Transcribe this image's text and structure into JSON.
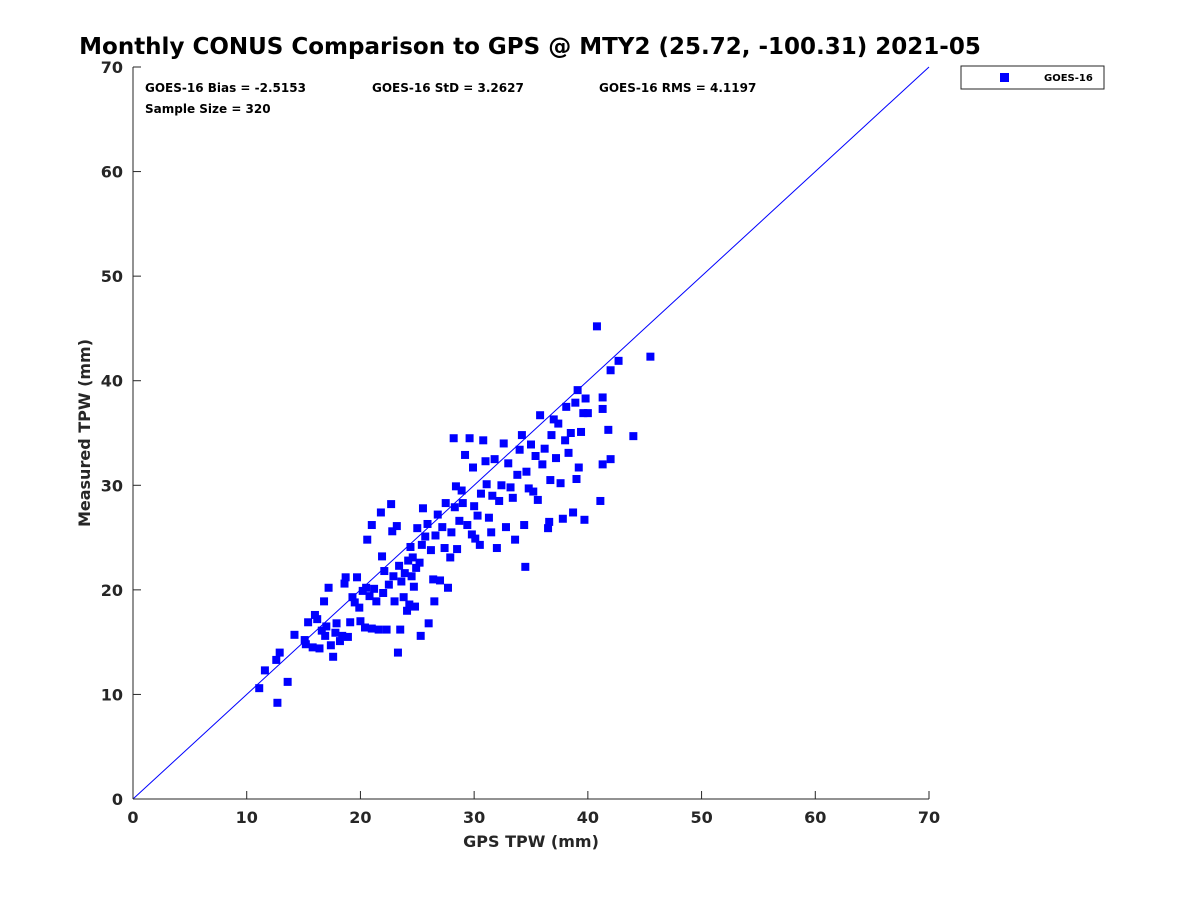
{
  "chart_data": {
    "type": "scatter",
    "title": "Monthly CONUS Comparison to GPS @ MTY2 (25.72, -100.31) 2021-05",
    "xlabel": "GPS TPW (mm)",
    "ylabel": "Measured TPW (mm)",
    "xlim": [
      0,
      70
    ],
    "ylim": [
      0,
      70
    ],
    "xticks": [
      "0",
      "10",
      "20",
      "30",
      "40",
      "50",
      "60",
      "70"
    ],
    "yticks": [
      "0",
      "10",
      "20",
      "30",
      "40",
      "50",
      "60",
      "70"
    ],
    "grid": false,
    "legend": {
      "placement": "outside-top-right",
      "entries": [
        "GOES-16"
      ]
    },
    "annotations": {
      "bias": "GOES-16 Bias = -2.5153",
      "std": "GOES-16 StD = 3.2627",
      "rms": "GOES-16 RMS = 4.1197",
      "n": "Sample Size = 320"
    },
    "reference_line": {
      "from": [
        0,
        0
      ],
      "to": [
        70,
        70
      ],
      "color": "#0000ff"
    },
    "series": [
      {
        "name": "GOES-16",
        "color": "#0000ff",
        "points": [
          [
            11.1,
            10.6
          ],
          [
            11.6,
            12.3
          ],
          [
            12.7,
            9.2
          ],
          [
            12.6,
            13.3
          ],
          [
            12.9,
            14.0
          ],
          [
            13.6,
            11.2
          ],
          [
            14.2,
            15.7
          ],
          [
            15.1,
            15.2
          ],
          [
            15.4,
            16.9
          ],
          [
            15.2,
            14.8
          ],
          [
            15.8,
            14.5
          ],
          [
            16.0,
            17.6
          ],
          [
            16.2,
            17.2
          ],
          [
            16.4,
            14.4
          ],
          [
            16.6,
            16.1
          ],
          [
            16.8,
            18.9
          ],
          [
            16.9,
            15.6
          ],
          [
            17.0,
            16.5
          ],
          [
            17.2,
            20.2
          ],
          [
            17.4,
            14.7
          ],
          [
            17.6,
            13.6
          ],
          [
            17.8,
            15.9
          ],
          [
            17.9,
            16.8
          ],
          [
            18.2,
            15.1
          ],
          [
            18.4,
            15.6
          ],
          [
            18.6,
            20.6
          ],
          [
            18.7,
            21.2
          ],
          [
            18.9,
            15.5
          ],
          [
            19.1,
            16.9
          ],
          [
            19.3,
            19.3
          ],
          [
            19.5,
            18.8
          ],
          [
            19.7,
            21.2
          ],
          [
            19.9,
            18.3
          ],
          [
            20.0,
            17.0
          ],
          [
            20.2,
            19.9
          ],
          [
            20.4,
            16.4
          ],
          [
            20.5,
            20.2
          ],
          [
            20.6,
            24.8
          ],
          [
            20.8,
            19.4
          ],
          [
            21.0,
            26.2
          ],
          [
            21.0,
            16.3
          ],
          [
            21.2,
            20.1
          ],
          [
            21.4,
            18.9
          ],
          [
            21.6,
            16.2
          ],
          [
            21.8,
            27.4
          ],
          [
            21.9,
            23.2
          ],
          [
            22.0,
            19.7
          ],
          [
            22.1,
            21.8
          ],
          [
            22.3,
            16.2
          ],
          [
            22.5,
            20.5
          ],
          [
            22.7,
            28.2
          ],
          [
            22.8,
            25.6
          ],
          [
            22.9,
            21.3
          ],
          [
            23.0,
            18.9
          ],
          [
            23.2,
            26.1
          ],
          [
            23.3,
            14.0
          ],
          [
            23.4,
            22.3
          ],
          [
            23.5,
            16.2
          ],
          [
            23.6,
            20.8
          ],
          [
            23.8,
            19.3
          ],
          [
            23.9,
            21.6
          ],
          [
            24.1,
            18.0
          ],
          [
            24.2,
            22.8
          ],
          [
            24.3,
            18.6
          ],
          [
            24.4,
            24.1
          ],
          [
            24.5,
            21.3
          ],
          [
            24.6,
            23.1
          ],
          [
            24.7,
            20.3
          ],
          [
            24.8,
            18.4
          ],
          [
            24.9,
            22.1
          ],
          [
            25.0,
            25.9
          ],
          [
            25.2,
            22.6
          ],
          [
            25.3,
            15.6
          ],
          [
            25.4,
            24.3
          ],
          [
            25.5,
            27.8
          ],
          [
            25.7,
            25.1
          ],
          [
            25.9,
            26.3
          ],
          [
            26.0,
            16.8
          ],
          [
            26.2,
            23.8
          ],
          [
            26.4,
            21.0
          ],
          [
            26.5,
            18.9
          ],
          [
            26.6,
            25.2
          ],
          [
            26.8,
            27.2
          ],
          [
            27.0,
            20.9
          ],
          [
            27.2,
            26.0
          ],
          [
            27.4,
            24.0
          ],
          [
            27.5,
            28.3
          ],
          [
            27.7,
            20.2
          ],
          [
            27.9,
            23.1
          ],
          [
            28.0,
            25.5
          ],
          [
            28.2,
            34.5
          ],
          [
            28.3,
            27.9
          ],
          [
            28.4,
            29.9
          ],
          [
            28.5,
            23.9
          ],
          [
            28.7,
            26.6
          ],
          [
            28.9,
            29.5
          ],
          [
            29.0,
            28.3
          ],
          [
            29.2,
            32.9
          ],
          [
            29.4,
            26.2
          ],
          [
            29.6,
            34.5
          ],
          [
            29.8,
            25.3
          ],
          [
            29.9,
            31.7
          ],
          [
            30.0,
            28.0
          ],
          [
            30.1,
            24.9
          ],
          [
            30.3,
            27.1
          ],
          [
            30.5,
            24.3
          ],
          [
            30.6,
            29.2
          ],
          [
            30.8,
            34.3
          ],
          [
            31.0,
            32.3
          ],
          [
            31.1,
            30.1
          ],
          [
            31.3,
            26.9
          ],
          [
            31.5,
            25.5
          ],
          [
            31.6,
            29.0
          ],
          [
            31.8,
            32.5
          ],
          [
            32.0,
            24.0
          ],
          [
            32.2,
            28.5
          ],
          [
            32.4,
            30.0
          ],
          [
            32.6,
            34.0
          ],
          [
            32.8,
            26.0
          ],
          [
            33.0,
            32.1
          ],
          [
            33.2,
            29.8
          ],
          [
            33.4,
            28.8
          ],
          [
            33.6,
            24.8
          ],
          [
            33.8,
            31.0
          ],
          [
            34.0,
            33.4
          ],
          [
            34.2,
            34.8
          ],
          [
            34.4,
            26.2
          ],
          [
            34.5,
            22.2
          ],
          [
            34.6,
            31.3
          ],
          [
            34.8,
            29.7
          ],
          [
            35.0,
            33.9
          ],
          [
            35.2,
            29.4
          ],
          [
            35.4,
            32.8
          ],
          [
            35.6,
            28.6
          ],
          [
            35.8,
            36.7
          ],
          [
            36.0,
            32.0
          ],
          [
            36.2,
            33.5
          ],
          [
            36.5,
            25.9
          ],
          [
            36.6,
            26.5
          ],
          [
            36.7,
            30.5
          ],
          [
            36.8,
            34.8
          ],
          [
            37.0,
            36.3
          ],
          [
            37.2,
            32.6
          ],
          [
            37.4,
            35.9
          ],
          [
            37.6,
            30.2
          ],
          [
            37.8,
            26.8
          ],
          [
            38.0,
            34.3
          ],
          [
            38.1,
            37.5
          ],
          [
            38.3,
            33.1
          ],
          [
            38.5,
            35.0
          ],
          [
            38.7,
            27.4
          ],
          [
            38.9,
            37.9
          ],
          [
            39.0,
            30.6
          ],
          [
            39.1,
            39.1
          ],
          [
            39.2,
            31.7
          ],
          [
            39.4,
            35.1
          ],
          [
            39.6,
            36.9
          ],
          [
            39.7,
            26.7
          ],
          [
            39.8,
            38.3
          ],
          [
            40.0,
            36.9
          ],
          [
            40.8,
            45.2
          ],
          [
            41.1,
            28.5
          ],
          [
            41.3,
            32.0
          ],
          [
            41.3,
            37.3
          ],
          [
            41.3,
            38.4
          ],
          [
            41.8,
            35.3
          ],
          [
            42.0,
            32.5
          ],
          [
            42.0,
            41.0
          ],
          [
            42.7,
            41.9
          ],
          [
            44.0,
            34.7
          ],
          [
            45.5,
            42.3
          ]
        ]
      }
    ]
  }
}
